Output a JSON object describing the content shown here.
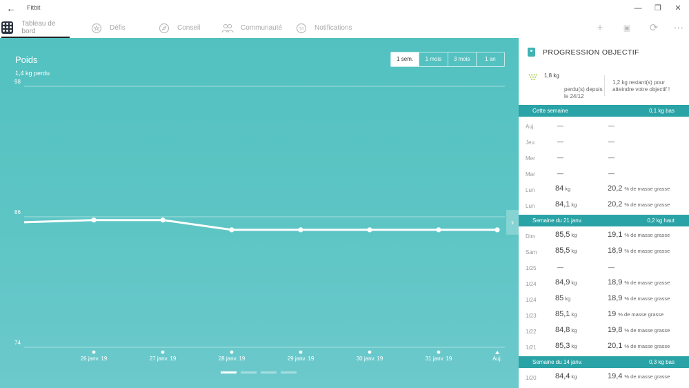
{
  "window": {
    "title": "Fitbit",
    "back_icon": "back-arrow-icon",
    "minimize_glyph": "—",
    "maximize_glyph": "❐",
    "close_glyph": "✕"
  },
  "nav": {
    "tabs": [
      {
        "label": "Tableau de bord",
        "icon": "dashboard-grid-icon",
        "active": true
      },
      {
        "label": "Défis",
        "icon": "star-badge-icon"
      },
      {
        "label": "Conseil",
        "icon": "compass-icon"
      },
      {
        "label": "Communauté",
        "icon": "people-icon"
      },
      {
        "label": "Notifications",
        "icon": "notifications-icon"
      }
    ],
    "tools": {
      "add_glyph": "+",
      "device_glyph": "▣",
      "sync_glyph": "⟳",
      "more_glyph": "⋯"
    }
  },
  "chart_panel": {
    "title": "Poids",
    "subtitle": "1,4 kg perdu",
    "ranges": [
      "1 sem.",
      "1 mois",
      "3 mois",
      "1 an"
    ],
    "active_range": "1 sem.",
    "next_glyph": "›",
    "pages": 4,
    "active_page": 0
  },
  "chart_data": {
    "type": "line",
    "title": "Poids",
    "x": [
      "",
      "26 janv. 19",
      "27 janv. 19",
      "28 janv. 19",
      "29 janv. 19",
      "30 janv. 19",
      "31 janv. 19",
      "Auj."
    ],
    "y": [
      85.5,
      85.7,
      85.7,
      84.8,
      84.8,
      84.8,
      84.8,
      84.8
    ],
    "yticks": [
      74,
      86,
      98
    ],
    "ylim": [
      74,
      98
    ],
    "grid": true,
    "colors": {
      "line": "#ffffff",
      "background": "#55c3c2"
    }
  },
  "side": {
    "goal_title": "PROGRESSION OBJECTIF",
    "lost_value": "1,8 kg",
    "lost_since": "perdu(s) depuis le 24/12",
    "remaining": "1,2 kg restant(s) pour atteindre votre objectif !",
    "weeks": [
      {
        "label": "Cette semaine",
        "delta": "0,1 kg bas",
        "rows": [
          {
            "day": "Auj.",
            "weight": "",
            "fat": ""
          },
          {
            "day": "Jeu",
            "weight": "",
            "fat": ""
          },
          {
            "day": "Mer",
            "weight": "",
            "fat": ""
          },
          {
            "day": "Mar",
            "weight": "",
            "fat": ""
          },
          {
            "day": "Lun",
            "weight": "84",
            "fat": "20,2"
          },
          {
            "day": "Lun",
            "weight": "84,1",
            "fat": "20,2"
          }
        ]
      },
      {
        "label": "Semaine du 21 janv.",
        "delta": "0,2 kg haut",
        "rows": [
          {
            "day": "Dim",
            "weight": "85,5",
            "fat": "19,1"
          },
          {
            "day": "Sam",
            "weight": "85,5",
            "fat": "18,9"
          },
          {
            "day": "1/25",
            "weight": "",
            "fat": ""
          },
          {
            "day": "1/24",
            "weight": "84,9",
            "fat": "18,9"
          },
          {
            "day": "1/24",
            "weight": "85",
            "fat": "18,9"
          },
          {
            "day": "1/23",
            "weight": "85,1",
            "fat": "19"
          },
          {
            "day": "1/22",
            "weight": "84,8",
            "fat": "19,8"
          },
          {
            "day": "1/21",
            "weight": "85,3",
            "fat": "20,1"
          }
        ]
      },
      {
        "label": "Semaine du 14 janv.",
        "delta": "0,3 kg bas",
        "rows": [
          {
            "day": "1/20",
            "weight": "84,4",
            "fat": "19,4"
          }
        ]
      }
    ],
    "unit_weight": "kg",
    "unit_fat": "% de masse grasse",
    "empty_glyph": "—"
  }
}
